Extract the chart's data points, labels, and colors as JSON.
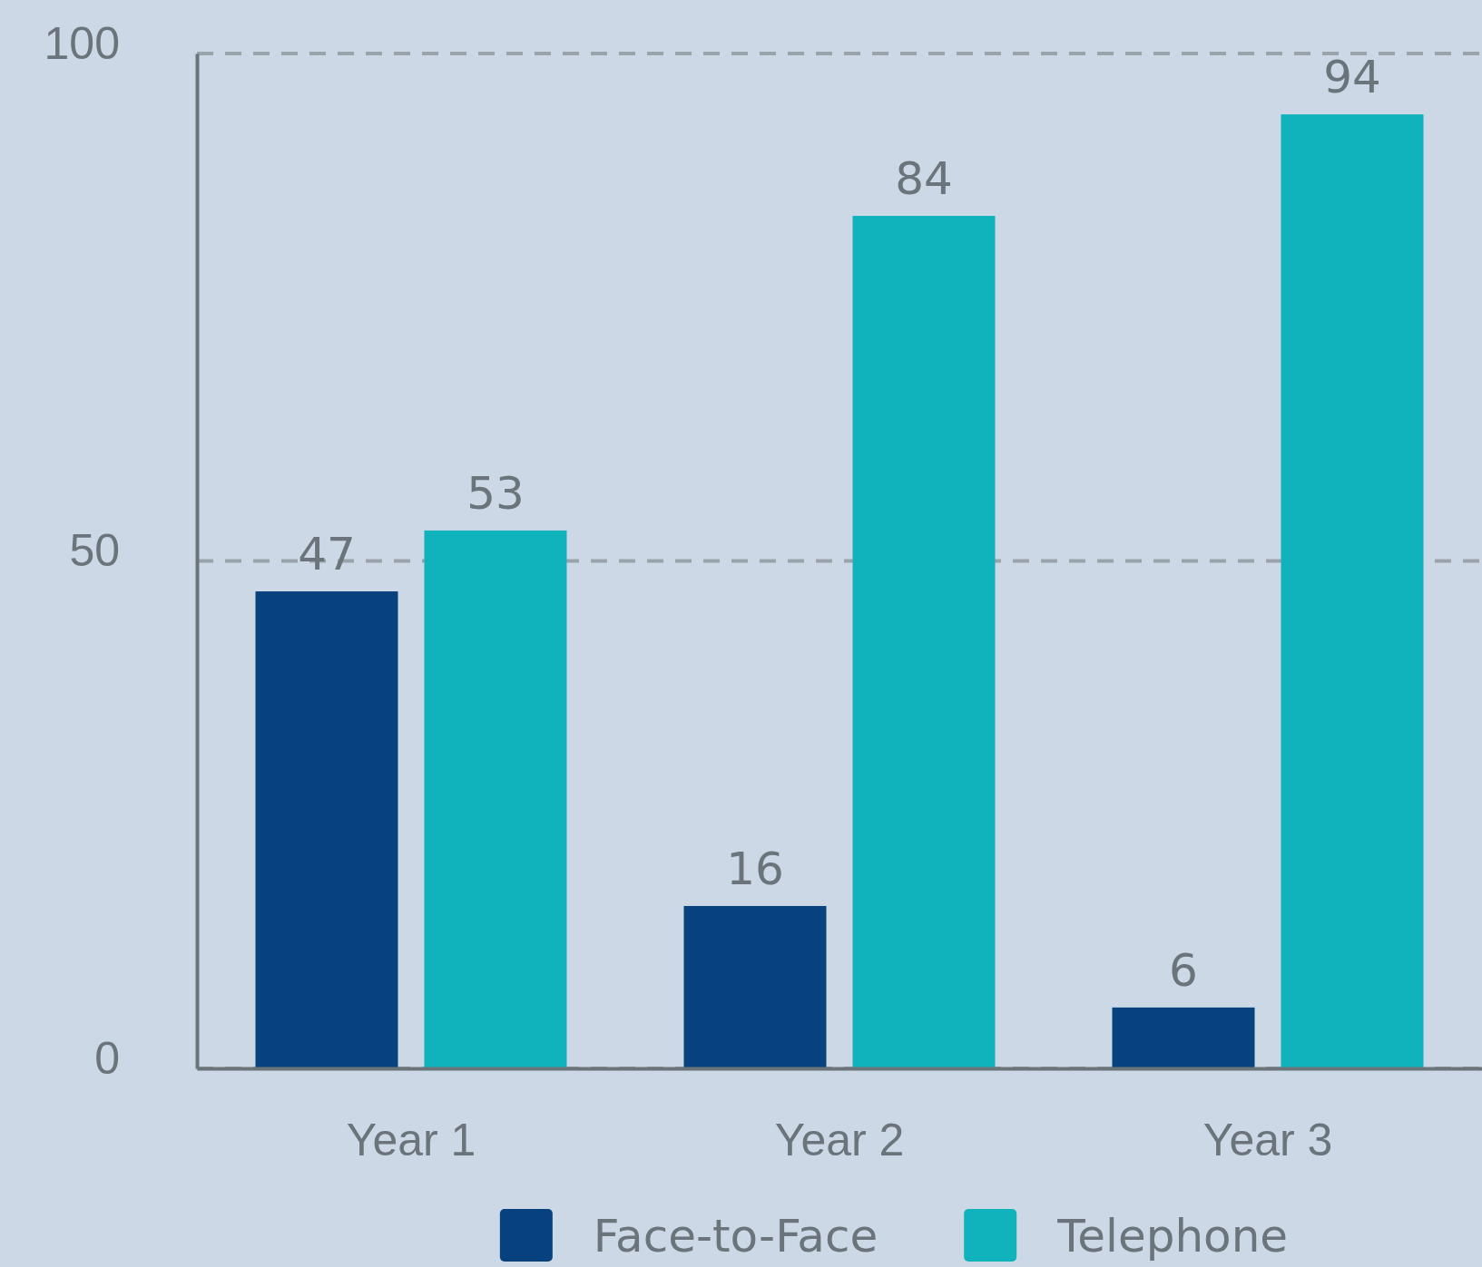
{
  "chart_data": {
    "type": "bar",
    "categories": [
      "Year 1",
      "Year 2",
      "Year 3"
    ],
    "series": [
      {
        "name": "Face-to-Face",
        "color": "#08427e",
        "values": [
          47,
          16,
          6
        ]
      },
      {
        "name": "Telephone",
        "color": "#10b2bc",
        "values": [
          53,
          84,
          94
        ]
      }
    ],
    "ylim": [
      0,
      100
    ],
    "yticks": [
      0,
      50,
      100
    ],
    "grid": "y",
    "legend": "bottom",
    "data_labels": true
  }
}
